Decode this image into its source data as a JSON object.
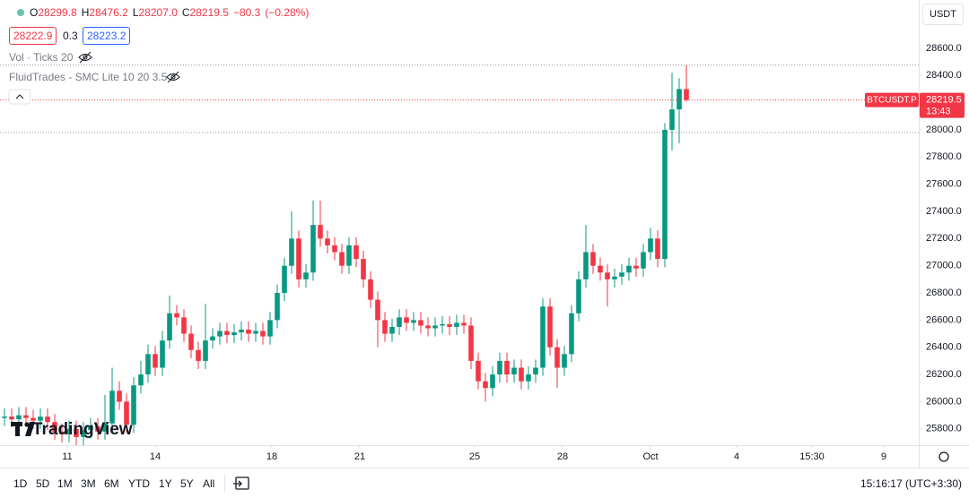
{
  "chart_data": {
    "type": "candlestick",
    "symbol": "BTCUSDT.P",
    "open": [
      25880,
      25890,
      25870,
      25900,
      25880,
      25860,
      25890,
      25850,
      25780,
      25760,
      25800,
      25740,
      25790,
      25820,
      25780,
      25840,
      26080,
      26000,
      25830,
      26120,
      26200,
      26350,
      26250,
      26450,
      26650,
      26620,
      26500,
      26380,
      26300,
      26450,
      26480,
      26520,
      26490,
      26510,
      26530,
      26500,
      26520,
      26480,
      26600,
      26800,
      27000,
      27200,
      26900,
      26950,
      27300,
      27200,
      27150,
      27100,
      27000,
      27150,
      27050,
      26900,
      26750,
      26600,
      26500,
      26550,
      26620,
      26580,
      26600,
      26560,
      26540,
      26560,
      26570,
      26550,
      26580,
      26560,
      26300,
      26150,
      26100,
      26200,
      26300,
      26200,
      26250,
      26150,
      26200,
      26250,
      26700,
      26400,
      26250,
      26350,
      26650,
      26900,
      27100,
      27000,
      26950,
      26900,
      26920,
      26950,
      27000,
      26980,
      27100,
      27200,
      27050,
      28000,
      28150,
      28299.8
    ],
    "high": [
      25950,
      25950,
      25960,
      25960,
      25940,
      25950,
      25950,
      25910,
      25840,
      25860,
      25860,
      25850,
      25880,
      25880,
      26050,
      26250,
      26150,
      26060,
      26180,
      26300,
      26420,
      26410,
      26520,
      26780,
      26710,
      26680,
      26560,
      26440,
      26720,
      26540,
      26580,
      26580,
      26570,
      26590,
      26590,
      26580,
      26580,
      26660,
      26860,
      27060,
      27400,
      27260,
      27010,
      27480,
      27480,
      27260,
      27210,
      27160,
      27210,
      27210,
      27110,
      26960,
      26810,
      26660,
      26610,
      26680,
      26680,
      26660,
      26660,
      26620,
      26620,
      26630,
      26630,
      26640,
      26640,
      26620,
      26360,
      26210,
      26260,
      26360,
      26360,
      26310,
      26310,
      26260,
      26310,
      26760,
      26760,
      26460,
      26410,
      26710,
      26960,
      27300,
      27160,
      27060,
      27010,
      26980,
      27010,
      27060,
      27060,
      27160,
      27280,
      27260,
      28050,
      28420,
      28380,
      28476.2
    ],
    "low": [
      25820,
      25810,
      25810,
      25820,
      25800,
      25800,
      25790,
      25720,
      25700,
      25700,
      25680,
      25680,
      25730,
      25720,
      25720,
      25780,
      25940,
      25770,
      25770,
      26060,
      26140,
      26190,
      26190,
      26390,
      26560,
      26440,
      26320,
      26240,
      26240,
      26390,
      26420,
      26430,
      26430,
      26450,
      26440,
      26440,
      26420,
      26420,
      26540,
      26740,
      26940,
      26840,
      26840,
      26890,
      27140,
      27090,
      27040,
      26940,
      26940,
      26990,
      26840,
      26690,
      26400,
      26440,
      26440,
      26490,
      26520,
      26520,
      26500,
      26480,
      26480,
      26500,
      26490,
      26490,
      26500,
      26240,
      26090,
      26000,
      26040,
      26140,
      26140,
      26140,
      26090,
      26090,
      26140,
      26190,
      26340,
      26100,
      26190,
      26290,
      26590,
      26840,
      26940,
      26890,
      26700,
      26840,
      26860,
      26890,
      26920,
      26920,
      27040,
      26990,
      26990,
      27850,
      27900,
      28207.0
    ],
    "close": [
      25890,
      25870,
      25900,
      25880,
      25860,
      25890,
      25850,
      25780,
      25760,
      25800,
      25740,
      25790,
      25820,
      25780,
      25840,
      26080,
      26000,
      25830,
      26120,
      26200,
      26350,
      26250,
      26450,
      26650,
      26620,
      26500,
      26380,
      26300,
      26450,
      26480,
      26520,
      26490,
      26510,
      26530,
      26500,
      26520,
      26480,
      26600,
      26800,
      27000,
      27200,
      26900,
      26950,
      27300,
      27200,
      27150,
      27100,
      27000,
      27150,
      27050,
      26900,
      26750,
      26600,
      26500,
      26550,
      26620,
      26580,
      26600,
      26560,
      26540,
      26560,
      26570,
      26550,
      26580,
      26560,
      26300,
      26150,
      26100,
      26200,
      26300,
      26200,
      26250,
      26150,
      26200,
      26250,
      26700,
      26400,
      26250,
      26350,
      26650,
      26900,
      27100,
      27000,
      26950,
      26900,
      26920,
      26950,
      27000,
      26980,
      27100,
      27200,
      27050,
      28000,
      28150,
      28300,
      28219.5
    ],
    "up_color": "#089981",
    "down_color": "#f23645",
    "grid": false,
    "ylim": [
      25680,
      28955
    ],
    "yticks": [
      {
        "value": 25800,
        "label": "25800.0"
      },
      {
        "value": 26000,
        "label": "26000.0"
      },
      {
        "value": 26200,
        "label": "26200.0"
      },
      {
        "value": 26400,
        "label": "26400.0"
      },
      {
        "value": 26600,
        "label": "26600.0"
      },
      {
        "value": 26800,
        "label": "26800.0"
      },
      {
        "value": 27000,
        "label": "27000.0"
      },
      {
        "value": 27200,
        "label": "27200.0"
      },
      {
        "value": 27400,
        "label": "27400.0"
      },
      {
        "value": 27600,
        "label": "27600.0"
      },
      {
        "value": 27800,
        "label": "27800.0"
      },
      {
        "value": 28000,
        "label": "28000.0"
      },
      {
        "value": 28200,
        "label": "28200.0"
      },
      {
        "value": 28400,
        "label": "28400.0"
      },
      {
        "value": 28600,
        "label": "28600.0"
      }
    ],
    "xlim": [
      -0.625,
      127.375
    ],
    "xticks": [
      {
        "value": 8.75,
        "label": "11"
      },
      {
        "value": 21,
        "label": "14"
      },
      {
        "value": 37.25,
        "label": "18"
      },
      {
        "value": 49.5,
        "label": "21"
      },
      {
        "value": 65.5,
        "label": "25"
      },
      {
        "value": 77.75,
        "label": "28"
      },
      {
        "value": 90,
        "label": "Oct"
      },
      {
        "value": 102,
        "label": "4"
      },
      {
        "value": 112.5,
        "label": "15:30"
      },
      {
        "value": 122.5,
        "label": "9"
      }
    ],
    "last_price": "28219.5",
    "countdown": "13:43"
  },
  "header": {
    "ohlc": [
      {
        "key": "O",
        "value": "28299.8"
      },
      {
        "key": "H",
        "value": "28476.2"
      },
      {
        "key": "L",
        "value": "28207.0"
      },
      {
        "key": "C",
        "value": "28219.5"
      }
    ],
    "change": "−80.3",
    "change_pct": "(−0.28%)",
    "bid": "28222.9",
    "spread": "0.3",
    "ask": "28223.2",
    "currency": "USDT"
  },
  "indicators": [
    "Vol · Ticks 20",
    "FluidTrades - SMC Lite 10 20 3.5"
  ],
  "logo": "TradingView",
  "toolbar": {
    "ranges": [
      "1D",
      "5D",
      "1M",
      "3M",
      "6M",
      "YTD",
      "1Y",
      "5Y",
      "All"
    ],
    "clock": "15:16:17 (UTC+3:30)"
  }
}
